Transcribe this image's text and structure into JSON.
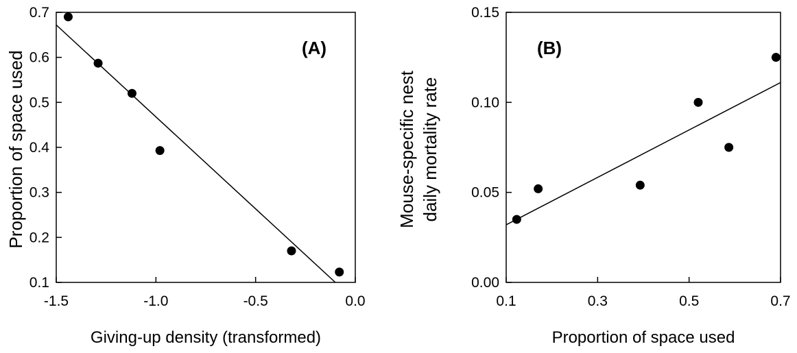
{
  "chart_data": [
    {
      "type": "scatter",
      "panel_label": "(A)",
      "title": "",
      "xlabel": "Giving-up density (transformed)",
      "ylabel": "Proportion of space used",
      "xlim": [
        -1.5,
        0.0
      ],
      "ylim": [
        0.1,
        0.7
      ],
      "xticks": [
        "-1.5",
        "-1.0",
        "-0.5",
        "0.0"
      ],
      "yticks": [
        "0.1",
        "0.2",
        "0.3",
        "0.4",
        "0.5",
        "0.6",
        "0.7"
      ],
      "grid": false,
      "series": [
        {
          "points": [
            {
              "x": -1.44,
              "y": 0.69
            },
            {
              "x": -1.29,
              "y": 0.587
            },
            {
              "x": -1.12,
              "y": 0.52
            },
            {
              "x": -0.98,
              "y": 0.393
            },
            {
              "x": -0.32,
              "y": 0.17
            },
            {
              "x": -0.08,
              "y": 0.123
            }
          ]
        }
      ],
      "fit_line": {
        "x": [
          -1.5,
          -0.1
        ],
        "y": [
          0.672,
          0.1
        ]
      }
    },
    {
      "type": "scatter",
      "panel_label": "(B)",
      "title": "",
      "xlabel": "Proportion of space used",
      "ylabel": [
        "Mouse-specific nest",
        "daily mortality rate"
      ],
      "xlim": [
        0.1,
        0.7
      ],
      "ylim": [
        0.0,
        0.15
      ],
      "xticks": [
        "0.1",
        "0.3",
        "0.5",
        "0.7"
      ],
      "yticks": [
        "0.00",
        "0.05",
        "0.10",
        "0.15"
      ],
      "grid": false,
      "series": [
        {
          "points": [
            {
              "x": 0.123,
              "y": 0.035
            },
            {
              "x": 0.17,
              "y": 0.052
            },
            {
              "x": 0.393,
              "y": 0.054
            },
            {
              "x": 0.52,
              "y": 0.1
            },
            {
              "x": 0.587,
              "y": 0.075
            },
            {
              "x": 0.69,
              "y": 0.125
            }
          ]
        }
      ],
      "fit_line": {
        "x": [
          0.1,
          0.7
        ],
        "y": [
          0.032,
          0.111
        ]
      }
    }
  ]
}
